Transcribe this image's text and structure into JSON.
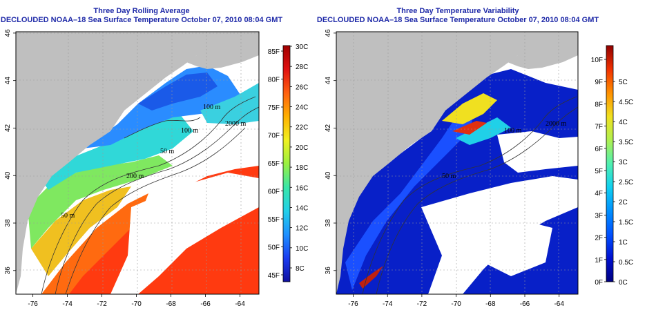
{
  "panels": [
    {
      "title": "Three Day Rolling Average",
      "subtitle": "DECLOUDED NOAA–18 Sea Surface Temperature October 07, 2010 08:04 GMT",
      "x_ticks": [
        "-76",
        "-74",
        "-72",
        "-70",
        "-68",
        "-66",
        "-64"
      ],
      "y_ticks": [
        "36",
        "38",
        "40",
        "42",
        "44",
        "46"
      ],
      "contours": [
        "100 m",
        "100 m",
        "2000 m",
        "50 m",
        "200 m",
        "50 m"
      ],
      "colorbar": {
        "left_labels": [
          "85F",
          "80F",
          "75F",
          "70F",
          "65F",
          "60F",
          "55F",
          "50F",
          "45F"
        ],
        "right_labels": [
          "30C",
          "28C",
          "26C",
          "24C",
          "22C",
          "20C",
          "18C",
          "16C",
          "14C",
          "12C",
          "10C",
          "8C"
        ],
        "colors": [
          "#1010a0",
          "#1a3cf0",
          "#1e90ff",
          "#22d0e8",
          "#39e6a8",
          "#9af040",
          "#f0f020",
          "#ffb000",
          "#ff6010",
          "#e01010",
          "#a00000"
        ]
      }
    },
    {
      "title": "Three Day Temperature Variability",
      "subtitle": "DECLOUDED NOAA–18 Sea Surface Temperature October 07, 2010 08:04 GMT",
      "x_ticks": [
        "-76",
        "-74",
        "-72",
        "-70",
        "-68",
        "-66",
        "-64"
      ],
      "y_ticks": [
        "36",
        "38",
        "40",
        "42",
        "44",
        "46"
      ],
      "contours": [
        "100 m",
        "2000 m",
        "50 m"
      ],
      "colorbar": {
        "left_labels": [
          "10F",
          "9F",
          "8F",
          "7F",
          "6F",
          "5F",
          "4F",
          "3F",
          "2F",
          "1F",
          "0F"
        ],
        "right_labels": [
          "5C",
          "4.5C",
          "4C",
          "3.5C",
          "3C",
          "2.5C",
          "2C",
          "1.5C",
          "1C",
          "0.5C",
          "0C"
        ],
        "colors": [
          "#000080",
          "#0010d0",
          "#0050ff",
          "#0090ff",
          "#10d0f0",
          "#50f0b0",
          "#b0f050",
          "#f0e020",
          "#ff9000",
          "#f03000",
          "#900000"
        ]
      }
    }
  ]
}
